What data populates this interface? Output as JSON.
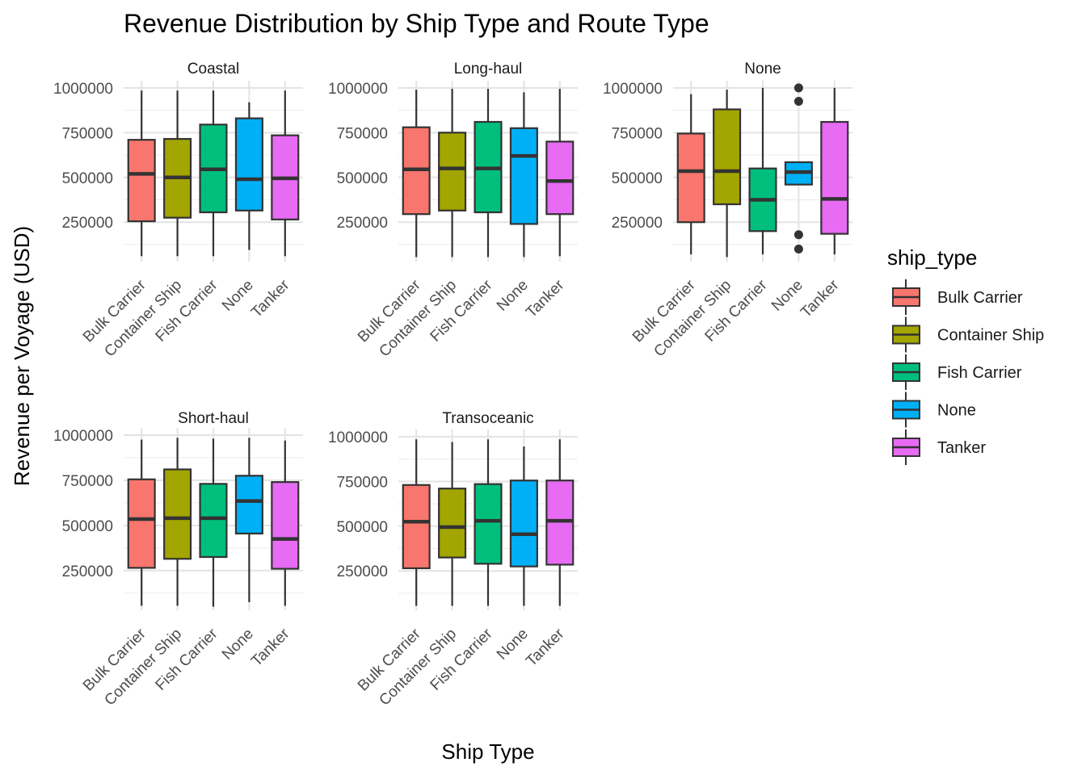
{
  "chart_data": {
    "type": "boxplot",
    "title": "Revenue Distribution by Ship Type and Route Type",
    "xlabel": "Ship Type",
    "ylabel": "Revenue per Voyage (USD)",
    "legend_title": "ship_type",
    "legend_position": "right",
    "grid": true,
    "categories": [
      "Bulk Carrier",
      "Container Ship",
      "Fish Carrier",
      "None",
      "Tanker"
    ],
    "colors": {
      "Bulk Carrier": "#F8766D",
      "Container Ship": "#A3A500",
      "Fish Carrier": "#00BF7D",
      "None": "#00B0F6",
      "Tanker": "#E76BF3"
    },
    "y_ticks": [
      250000,
      500000,
      750000,
      1000000
    ],
    "y_tick_labels": [
      "250000",
      "500000",
      "750000",
      "1000000"
    ],
    "ylim": [
      30000,
      1040000
    ],
    "panels": [
      {
        "name": "Coastal",
        "boxes": [
          {
            "category": "Bulk Carrier",
            "min": 60000,
            "q1": 255000,
            "median": 520000,
            "q3": 710000,
            "max": 985000,
            "outliers": []
          },
          {
            "category": "Container Ship",
            "min": 60000,
            "q1": 275000,
            "median": 500000,
            "q3": 715000,
            "max": 985000,
            "outliers": []
          },
          {
            "category": "Fish Carrier",
            "min": 60000,
            "q1": 305000,
            "median": 545000,
            "q3": 795000,
            "max": 985000,
            "outliers": []
          },
          {
            "category": "None",
            "min": 95000,
            "q1": 315000,
            "median": 490000,
            "q3": 830000,
            "max": 920000,
            "outliers": []
          },
          {
            "category": "Tanker",
            "min": 60000,
            "q1": 265000,
            "median": 495000,
            "q3": 735000,
            "max": 985000,
            "outliers": []
          }
        ]
      },
      {
        "name": "Long-haul",
        "boxes": [
          {
            "category": "Bulk Carrier",
            "min": 55000,
            "q1": 295000,
            "median": 545000,
            "q3": 780000,
            "max": 990000,
            "outliers": []
          },
          {
            "category": "Container Ship",
            "min": 55000,
            "q1": 315000,
            "median": 550000,
            "q3": 750000,
            "max": 995000,
            "outliers": []
          },
          {
            "category": "Fish Carrier",
            "min": 55000,
            "q1": 305000,
            "median": 550000,
            "q3": 810000,
            "max": 995000,
            "outliers": []
          },
          {
            "category": "None",
            "min": 55000,
            "q1": 240000,
            "median": 620000,
            "q3": 775000,
            "max": 975000,
            "outliers": []
          },
          {
            "category": "Tanker",
            "min": 60000,
            "q1": 295000,
            "median": 480000,
            "q3": 700000,
            "max": 995000,
            "outliers": []
          }
        ]
      },
      {
        "name": "None",
        "boxes": [
          {
            "category": "Bulk Carrier",
            "min": 70000,
            "q1": 250000,
            "median": 535000,
            "q3": 745000,
            "max": 965000,
            "outliers": []
          },
          {
            "category": "Container Ship",
            "min": 55000,
            "q1": 350000,
            "median": 535000,
            "q3": 880000,
            "max": 990000,
            "outliers": []
          },
          {
            "category": "Fish Carrier",
            "min": 70000,
            "q1": 200000,
            "median": 375000,
            "q3": 550000,
            "max": 1000000,
            "outliers": []
          },
          {
            "category": "None",
            "min": 460000,
            "q1": 460000,
            "median": 530000,
            "q3": 585000,
            "max": 585000,
            "outliers": [
              1000000,
              925000,
              180000,
              100000
            ]
          },
          {
            "category": "Tanker",
            "min": 70000,
            "q1": 185000,
            "median": 380000,
            "q3": 810000,
            "max": 1000000,
            "outliers": []
          }
        ]
      },
      {
        "name": "Short-haul",
        "boxes": [
          {
            "category": "Bulk Carrier",
            "min": 55000,
            "q1": 265000,
            "median": 535000,
            "q3": 755000,
            "max": 975000,
            "outliers": []
          },
          {
            "category": "Container Ship",
            "min": 55000,
            "q1": 315000,
            "median": 540000,
            "q3": 810000,
            "max": 985000,
            "outliers": []
          },
          {
            "category": "Fish Carrier",
            "min": 50000,
            "q1": 325000,
            "median": 540000,
            "q3": 730000,
            "max": 980000,
            "outliers": []
          },
          {
            "category": "None",
            "min": 75000,
            "q1": 455000,
            "median": 635000,
            "q3": 775000,
            "max": 985000,
            "outliers": []
          },
          {
            "category": "Tanker",
            "min": 55000,
            "q1": 260000,
            "median": 425000,
            "q3": 740000,
            "max": 970000,
            "outliers": []
          }
        ]
      },
      {
        "name": "Transoceanic",
        "boxes": [
          {
            "category": "Bulk Carrier",
            "min": 55000,
            "q1": 265000,
            "median": 525000,
            "q3": 730000,
            "max": 985000,
            "outliers": []
          },
          {
            "category": "Container Ship",
            "min": 55000,
            "q1": 325000,
            "median": 495000,
            "q3": 710000,
            "max": 970000,
            "outliers": []
          },
          {
            "category": "Fish Carrier",
            "min": 55000,
            "q1": 290000,
            "median": 530000,
            "q3": 735000,
            "max": 985000,
            "outliers": []
          },
          {
            "category": "None",
            "min": 55000,
            "q1": 275000,
            "median": 455000,
            "q3": 755000,
            "max": 945000,
            "outliers": []
          },
          {
            "category": "Tanker",
            "min": 55000,
            "q1": 285000,
            "median": 530000,
            "q3": 755000,
            "max": 985000,
            "outliers": []
          }
        ]
      }
    ]
  }
}
